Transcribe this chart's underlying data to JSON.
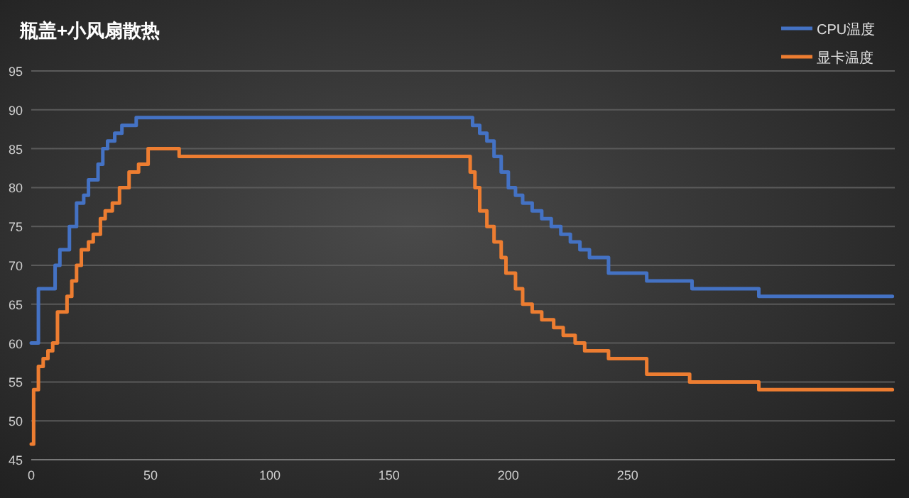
{
  "chart_data": {
    "type": "step",
    "title": "瓶盖+小风扇散热",
    "xlim": [
      0,
      362
    ],
    "xticks": [
      0,
      50,
      100,
      150,
      200,
      250
    ],
    "ylim": [
      45,
      95
    ],
    "yticks": [
      45,
      50,
      55,
      60,
      65,
      70,
      75,
      80,
      85,
      90,
      95
    ],
    "grid": "y",
    "legend": "top right",
    "series": [
      {
        "name": "CPU温度",
        "color": "#4472c4",
        "x": [
          0,
          3,
          10,
          12,
          16,
          19,
          22,
          24,
          28,
          30,
          32,
          35,
          38,
          44,
          185,
          188,
          191,
          194,
          197,
          200,
          203,
          206,
          210,
          214,
          218,
          222,
          226,
          230,
          234,
          242,
          258,
          277,
          305,
          361
        ],
        "values": [
          60,
          67,
          70,
          72,
          75,
          78,
          79,
          81,
          83,
          85,
          86,
          87,
          88,
          89,
          88,
          87,
          86,
          84,
          82,
          80,
          79,
          78,
          77,
          76,
          75,
          74,
          73,
          72,
          71,
          69,
          68,
          67,
          66,
          66
        ]
      },
      {
        "name": "显卡温度",
        "color": "#ed7d31",
        "x": [
          0,
          1,
          3,
          5,
          7,
          9,
          11,
          15,
          17,
          19,
          21,
          24,
          26,
          29,
          31,
          34,
          37,
          41,
          45,
          49,
          62,
          182,
          184,
          186,
          188,
          191,
          194,
          197,
          199,
          203,
          206,
          210,
          214,
          219,
          223,
          228,
          232,
          242,
          258,
          276,
          305,
          361
        ],
        "values": [
          47,
          54,
          57,
          58,
          59,
          60,
          64,
          66,
          68,
          70,
          72,
          73,
          74,
          76,
          77,
          78,
          80,
          82,
          83,
          85,
          84,
          84,
          82,
          80,
          77,
          75,
          73,
          71,
          69,
          67,
          65,
          64,
          63,
          62,
          61,
          60,
          59,
          58,
          56,
          55,
          54,
          54
        ]
      }
    ]
  }
}
